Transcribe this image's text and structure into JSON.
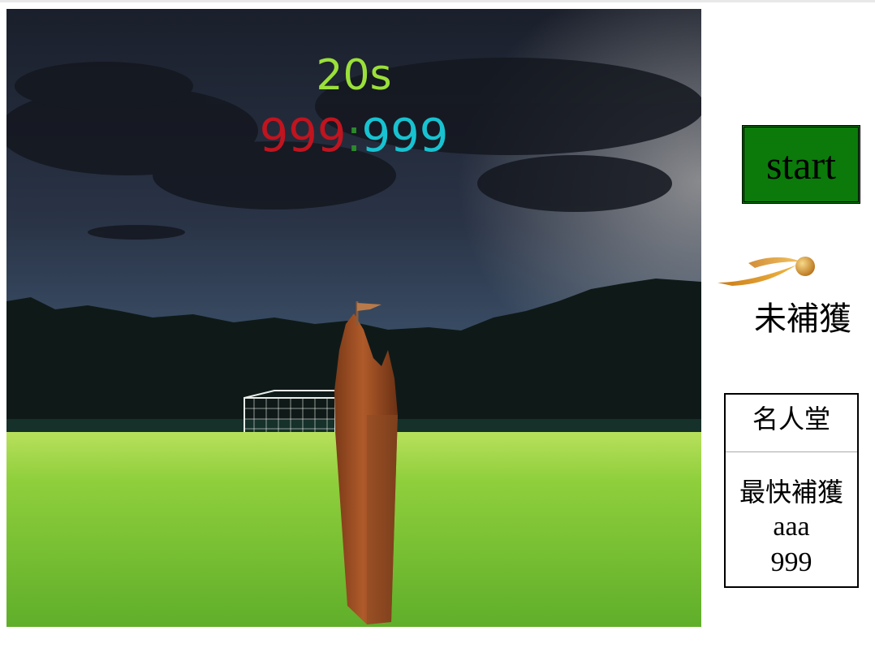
{
  "game": {
    "timer": "20s",
    "score_left": "999",
    "score_separator": ":",
    "score_right": "999"
  },
  "colors": {
    "timer": "#9be03a",
    "score_left": "#c0141f",
    "score_separator": "#2a8a2a",
    "score_right": "#18c2d0",
    "start_button_bg": "#0b7a0b"
  },
  "controls": {
    "start_label": "start"
  },
  "snitch": {
    "icon": "golden-snitch-icon",
    "status": "未補獲"
  },
  "hall_of_fame": {
    "title": "名人堂",
    "label": "最快補獲",
    "name": "aaa",
    "time": "999"
  }
}
